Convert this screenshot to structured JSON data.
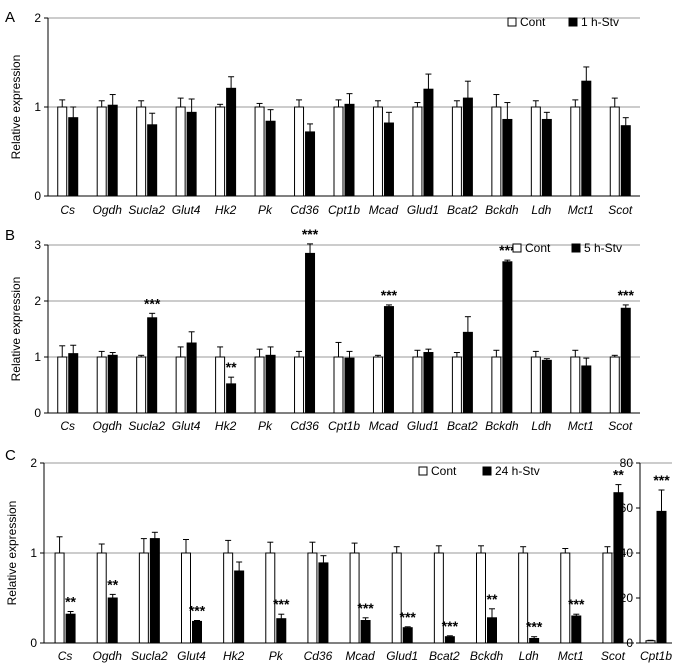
{
  "chart_data": [
    {
      "panel": "A",
      "type": "bar",
      "ylabel": "Relative expression",
      "ylim": [
        0,
        2
      ],
      "yticks": [
        0,
        1,
        2
      ],
      "grid": true,
      "legend_position": "top-right",
      "categories": [
        "Cs",
        "Ogdh",
        "Sucla2",
        "Glut4",
        "Hk2",
        "Pk",
        "Cd36",
        "Cpt1b",
        "Mcad",
        "Glud1",
        "Bcat2",
        "Bckdh",
        "Ldh",
        "Mct1",
        "Scot"
      ],
      "series": [
        {
          "name": "Cont",
          "fill": "#ffffff",
          "values": [
            1,
            1,
            1,
            1,
            1,
            1,
            1,
            1,
            1,
            1,
            1,
            1,
            1,
            1,
            1
          ],
          "errors": [
            0.08,
            0.07,
            0.07,
            0.1,
            0.03,
            0.04,
            0.08,
            0.08,
            0.07,
            0.05,
            0.07,
            0.14,
            0.07,
            0.08,
            0.1
          ]
        },
        {
          "name": "1 h-Stv",
          "fill": "#000000",
          "values": [
            0.88,
            1.02,
            0.8,
            0.94,
            1.21,
            0.84,
            0.72,
            1.03,
            0.82,
            1.2,
            1.1,
            0.86,
            0.86,
            1.29,
            0.79
          ],
          "errors": [
            0.12,
            0.12,
            0.13,
            0.15,
            0.13,
            0.13,
            0.09,
            0.12,
            0.12,
            0.17,
            0.19,
            0.19,
            0.08,
            0.16,
            0.09
          ]
        }
      ],
      "annotations": [
        "",
        "",
        "",
        "",
        "",
        "",
        "",
        "",
        "",
        "",
        "",
        "",
        "",
        "",
        ""
      ]
    },
    {
      "panel": "B",
      "type": "bar",
      "ylabel": "Relative expression",
      "ylim": [
        0,
        3
      ],
      "yticks": [
        0,
        1,
        2,
        3
      ],
      "grid": true,
      "legend_position": "top-right",
      "categories": [
        "Cs",
        "Ogdh",
        "Sucla2",
        "Glut4",
        "Hk2",
        "Pk",
        "Cd36",
        "Cpt1b",
        "Mcad",
        "Glud1",
        "Bcat2",
        "Bckdh",
        "Ldh",
        "Mct1",
        "Scot"
      ],
      "series": [
        {
          "name": "Cont",
          "fill": "#ffffff",
          "values": [
            1,
            1,
            1,
            1,
            1,
            1,
            1,
            1,
            1,
            1,
            1,
            1,
            1,
            1,
            1
          ],
          "errors": [
            0.2,
            0.1,
            0.03,
            0.18,
            0.18,
            0.14,
            0.1,
            0.26,
            0.03,
            0.12,
            0.08,
            0.12,
            0.1,
            0.12,
            0.03
          ]
        },
        {
          "name": "5 h-Stv",
          "fill": "#000000",
          "values": [
            1.06,
            1.03,
            1.7,
            1.25,
            0.52,
            1.03,
            2.85,
            0.98,
            1.9,
            1.08,
            1.44,
            2.7,
            0.94,
            0.84,
            1.87
          ],
          "errors": [
            0.15,
            0.05,
            0.08,
            0.2,
            0.12,
            0.15,
            0.17,
            0.12,
            0.03,
            0.06,
            0.28,
            0.03,
            0.03,
            0.14,
            0.06
          ]
        }
      ],
      "annotations": [
        "",
        "",
        "***",
        "",
        "**",
        "",
        "***",
        "",
        "***",
        "",
        "",
        "***",
        "",
        "",
        "***"
      ]
    },
    {
      "panel": "C",
      "type": "bar",
      "ylabel": "Relative expression",
      "ylim": [
        0,
        2
      ],
      "yticks": [
        0,
        1,
        2
      ],
      "grid": true,
      "legend_position": "top-right",
      "categories": [
        "Cs",
        "Ogdh",
        "Sucla2",
        "Glut4",
        "Hk2",
        "Pk",
        "Cd36",
        "Mcad",
        "Glud1",
        "Bcat2",
        "Bckdh",
        "Ldh",
        "Mct1",
        "Scot"
      ],
      "series": [
        {
          "name": "Cont",
          "fill": "#ffffff",
          "values": [
            1,
            1,
            1,
            1,
            1,
            1,
            1,
            1,
            1,
            1,
            1,
            1,
            1,
            1
          ],
          "errors": [
            0.18,
            0.1,
            0.16,
            0.15,
            0.14,
            0.12,
            0.12,
            0.11,
            0.07,
            0.08,
            0.08,
            0.07,
            0.05,
            0.07
          ]
        },
        {
          "name": "24 h-Stv",
          "fill": "#000000",
          "values": [
            0.32,
            0.5,
            1.16,
            0.24,
            0.8,
            0.27,
            0.89,
            0.25,
            0.17,
            0.07,
            0.28,
            0.05,
            0.3,
            1.67
          ],
          "errors": [
            0.03,
            0.04,
            0.07,
            0.01,
            0.1,
            0.05,
            0.08,
            0.03,
            0.01,
            0.01,
            0.1,
            0.02,
            0.02,
            0.09
          ]
        }
      ],
      "annotations": [
        "**",
        "**",
        "",
        "***",
        "",
        "***",
        "",
        "***",
        "***",
        "***",
        "**",
        "***",
        "***",
        "**"
      ]
    },
    {
      "panel": "C-inset",
      "type": "bar",
      "ylim": [
        0,
        80
      ],
      "yticks": [
        0,
        20,
        40,
        60,
        80
      ],
      "categories": [
        "Cpt1b"
      ],
      "series": [
        {
          "name": "Cont",
          "fill": "#ffffff",
          "values": [
            1
          ],
          "errors": [
            0.2
          ]
        },
        {
          "name": "24 h-Stv",
          "fill": "#000000",
          "values": [
            58.5
          ],
          "errors": [
            9.5
          ]
        }
      ],
      "annotations": [
        "***"
      ]
    }
  ]
}
